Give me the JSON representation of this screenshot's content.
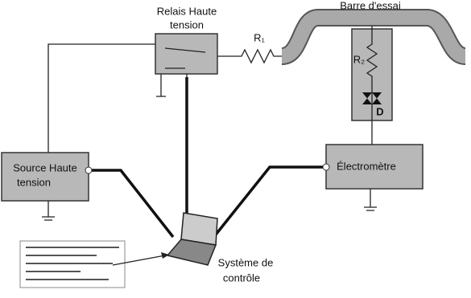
{
  "nodes": [
    {
      "id": "relay",
      "label": [
        "Relais Haute",
        "tension"
      ]
    },
    {
      "id": "r1",
      "label": [
        "R₁"
      ]
    },
    {
      "id": "bar",
      "label": [
        "Barre d'essai"
      ]
    },
    {
      "id": "r2",
      "label": [
        "R₂"
      ]
    },
    {
      "id": "diode",
      "label": [
        "D"
      ]
    },
    {
      "id": "source",
      "label": [
        "Source Haute",
        "tension"
      ]
    },
    {
      "id": "electrometer",
      "label": [
        "Électromètre"
      ]
    },
    {
      "id": "control",
      "label": [
        "Système de",
        "contrôle"
      ]
    }
  ]
}
